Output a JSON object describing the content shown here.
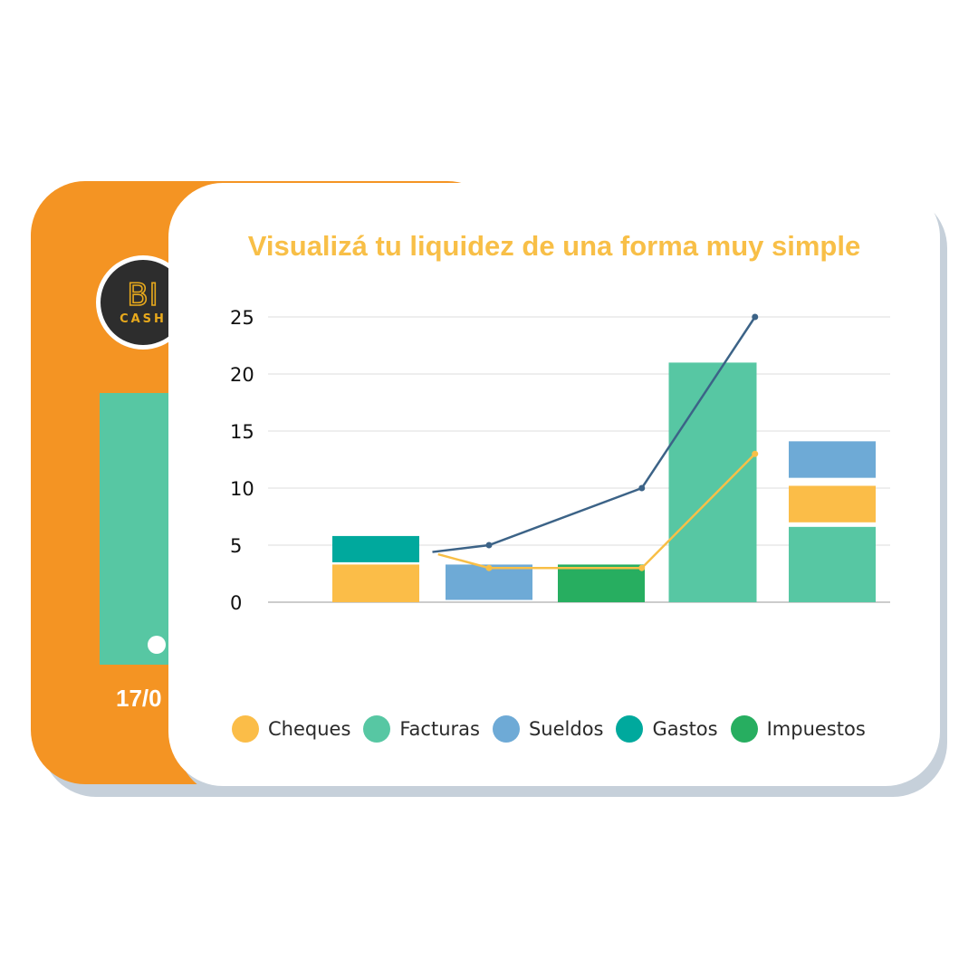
{
  "back_card": {
    "logo_big": "BI",
    "logo_small": "CASH",
    "date_text": "17/0",
    "bar_color": "#57c7a3",
    "card_color": "#f49423"
  },
  "colors": {
    "Cheques": "#fbbd48",
    "Facturas": "#57c7a3",
    "Sueldos": "#6eaad6",
    "Gastos": "#00a99d",
    "Impuestos": "#27ae60",
    "line_dark": "#3c6387",
    "line_yellow": "#f8bf47",
    "grid": "#dcdcdc",
    "title": "#f8bf47"
  },
  "chart_data": {
    "type": "bar",
    "title": "Visualizá tu liquidez de una forma muy simple",
    "xlabel": "",
    "ylabel": "",
    "ylim": [
      0,
      25
    ],
    "yticks": [
      0,
      5,
      10,
      15,
      20,
      25
    ],
    "grid": true,
    "legend_position": "bottom",
    "legend": [
      "Cheques",
      "Facturas",
      "Sueldos",
      "Gastos",
      "Impuestos"
    ],
    "stacks": [
      [
        {
          "series": "Cheques",
          "from": 0,
          "to": 3.3
        },
        {
          "series": "Gastos",
          "from": 3.5,
          "to": 5.8
        }
      ],
      [
        {
          "series": "Sueldos",
          "from": 0.2,
          "to": 3.3
        }
      ],
      [
        {
          "series": "Impuestos",
          "from": 0,
          "to": 3.3
        }
      ],
      [
        {
          "series": "Facturas",
          "from": 0,
          "to": 21
        }
      ],
      [
        {
          "series": "Facturas",
          "from": 0,
          "to": 6.6
        },
        {
          "series": "Cheques",
          "from": 7,
          "to": 10.2
        },
        {
          "series": "Sueldos",
          "from": 10.9,
          "to": 14.1
        }
      ]
    ],
    "lines": [
      {
        "color_key": "line_dark",
        "points": [
          [
            0.5,
            4.4
          ],
          [
            1,
            5
          ],
          [
            2.35,
            10
          ],
          [
            3.35,
            25
          ]
        ]
      },
      {
        "color_key": "line_yellow",
        "points": [
          [
            0.55,
            4.2
          ],
          [
            1,
            3
          ],
          [
            2.35,
            3
          ],
          [
            3.35,
            13
          ]
        ]
      }
    ]
  }
}
